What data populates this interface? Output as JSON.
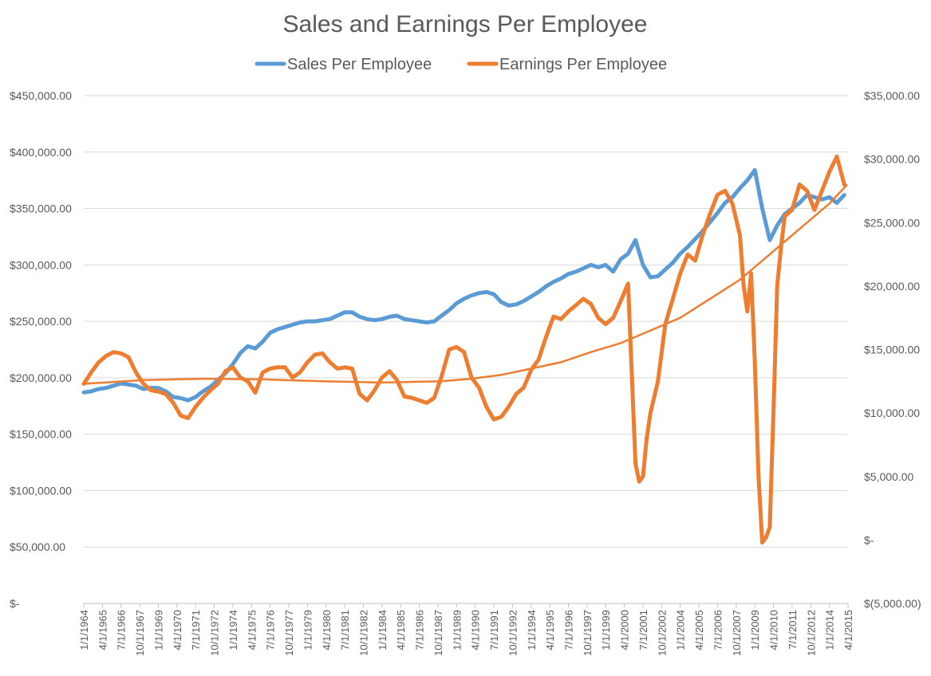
{
  "chart_data": {
    "type": "line",
    "title": "Sales and Earnings Per Employee",
    "legend_position": "top-center",
    "grid": true,
    "left_axis": {
      "ylim": [
        0,
        450000
      ],
      "ticks": [
        {
          "value": 450000,
          "label": "$450,000.00"
        },
        {
          "value": 400000,
          "label": "$400,000.00"
        },
        {
          "value": 350000,
          "label": "$350,000.00"
        },
        {
          "value": 300000,
          "label": "$300,000.00"
        },
        {
          "value": 250000,
          "label": "$250,000.00"
        },
        {
          "value": 200000,
          "label": "$200,000.00"
        },
        {
          "value": 150000,
          "label": "$150,000.00"
        },
        {
          "value": 100000,
          "label": "$100,000.00"
        },
        {
          "value": 50000,
          "label": "$50,000.00"
        },
        {
          "value": 0,
          "label": "$-"
        }
      ]
    },
    "right_axis": {
      "ylim": [
        -5000,
        35000
      ],
      "ticks": [
        {
          "value": 35000,
          "label": "$35,000.00"
        },
        {
          "value": 30000,
          "label": "$30,000.00"
        },
        {
          "value": 25000,
          "label": "$25,000.00"
        },
        {
          "value": 20000,
          "label": "$20,000.00"
        },
        {
          "value": 15000,
          "label": "$15,000.00"
        },
        {
          "value": 10000,
          "label": "$10,000.00"
        },
        {
          "value": 5000,
          "label": "$5,000.00"
        },
        {
          "value": 0,
          "label": "$-"
        },
        {
          "value": -5000,
          "label": "$(5,000.00)"
        }
      ]
    },
    "x_axis": {
      "range": [
        1964.0,
        2015.25
      ],
      "tick_labels": [
        "1/1/1964",
        "4/1/1965",
        "7/1/1966",
        "10/1/1967",
        "1/1/1969",
        "4/1/1970",
        "7/1/1971",
        "10/1/1972",
        "1/1/1974",
        "4/1/1975",
        "7/1/1976",
        "10/1/1977",
        "1/1/1979",
        "4/1/1980",
        "7/1/1981",
        "10/1/1982",
        "1/1/1984",
        "4/1/1985",
        "7/1/1986",
        "10/1/1987",
        "1/1/1989",
        "4/1/1990",
        "7/1/1991",
        "10/1/1992",
        "1/1/1994",
        "4/1/1995",
        "7/1/1996",
        "10/1/1997",
        "1/1/1999",
        "4/1/2000",
        "7/1/2001",
        "10/1/2002",
        "1/1/2004",
        "4/1/2005",
        "7/1/2006",
        "10/1/2007",
        "1/1/2009",
        "4/1/2010",
        "7/1/2011",
        "10/1/2012",
        "1/1/2014",
        "4/1/2015"
      ]
    },
    "series": [
      {
        "name": "Sales Per Employee",
        "axis": "left",
        "color": "#5b9bd5",
        "x": [
          1964.0,
          1964.5,
          1965.0,
          1965.5,
          1966.0,
          1966.5,
          1967.0,
          1967.5,
          1968.0,
          1968.5,
          1969.0,
          1969.5,
          1970.0,
          1970.5,
          1971.0,
          1971.5,
          1972.0,
          1972.5,
          1973.0,
          1973.5,
          1974.0,
          1974.5,
          1975.0,
          1975.5,
          1976.0,
          1976.5,
          1977.0,
          1977.5,
          1978.0,
          1978.5,
          1979.0,
          1979.5,
          1980.0,
          1980.5,
          1981.0,
          1981.5,
          1982.0,
          1982.5,
          1983.0,
          1983.5,
          1984.0,
          1984.5,
          1985.0,
          1985.5,
          1986.0,
          1986.5,
          1987.0,
          1987.5,
          1988.0,
          1988.5,
          1989.0,
          1989.5,
          1990.0,
          1990.5,
          1991.0,
          1991.5,
          1992.0,
          1992.5,
          1993.0,
          1993.5,
          1994.0,
          1994.5,
          1995.0,
          1995.5,
          1996.0,
          1996.5,
          1997.0,
          1997.5,
          1998.0,
          1998.5,
          1999.0,
          1999.5,
          2000.0,
          2000.5,
          2001.0,
          2001.5,
          2002.0,
          2002.5,
          2003.0,
          2003.5,
          2004.0,
          2004.5,
          2005.0,
          2005.5,
          2006.0,
          2006.5,
          2007.0,
          2007.5,
          2008.0,
          2008.5,
          2009.0,
          2009.5,
          2010.0,
          2010.5,
          2011.0,
          2011.5,
          2012.0,
          2012.5,
          2013.0,
          2013.5,
          2014.0,
          2014.5,
          2015.0
        ],
        "values": [
          187000,
          188000,
          190000,
          191000,
          193000,
          195000,
          194000,
          193000,
          190000,
          191000,
          191000,
          188000,
          183000,
          182000,
          180000,
          183000,
          188000,
          192000,
          198000,
          204000,
          212000,
          222000,
          228000,
          226000,
          232000,
          240000,
          243000,
          245000,
          247000,
          249000,
          250000,
          250000,
          251000,
          252000,
          255000,
          258000,
          258000,
          254000,
          252000,
          251000,
          252000,
          254000,
          255000,
          252000,
          251000,
          250000,
          249000,
          250000,
          255000,
          260000,
          266000,
          270000,
          273000,
          275000,
          276000,
          274000,
          267000,
          264000,
          265000,
          268000,
          272000,
          276000,
          281000,
          285000,
          288000,
          292000,
          294000,
          297000,
          300000,
          298000,
          300000,
          294000,
          305000,
          310000,
          322000,
          300000,
          289000,
          290000,
          296000,
          302000,
          310000,
          316000,
          323000,
          330000,
          338000,
          346000,
          355000,
          360000,
          368000,
          375000,
          384000,
          350000,
          322000,
          335000,
          345000,
          350000,
          355000,
          362000,
          360000,
          358000,
          360000,
          355000,
          362000
        ]
      },
      {
        "name": "Earnings Per Employee",
        "axis": "right",
        "color": "#ed7d31",
        "x": [
          1964.0,
          1964.5,
          1965.0,
          1965.5,
          1966.0,
          1966.5,
          1967.0,
          1967.5,
          1968.0,
          1968.5,
          1969.0,
          1969.5,
          1970.0,
          1970.5,
          1971.0,
          1971.5,
          1972.0,
          1972.5,
          1973.0,
          1973.5,
          1974.0,
          1974.5,
          1975.0,
          1975.5,
          1976.0,
          1976.5,
          1977.0,
          1977.5,
          1978.0,
          1978.5,
          1979.0,
          1979.5,
          1980.0,
          1980.5,
          1981.0,
          1981.5,
          1982.0,
          1982.5,
          1983.0,
          1983.5,
          1984.0,
          1984.5,
          1985.0,
          1985.5,
          1986.0,
          1986.5,
          1987.0,
          1987.5,
          1988.0,
          1988.5,
          1989.0,
          1989.5,
          1990.0,
          1990.5,
          1991.0,
          1991.5,
          1992.0,
          1992.5,
          1993.0,
          1993.5,
          1994.0,
          1994.5,
          1995.0,
          1995.5,
          1996.0,
          1996.5,
          1997.0,
          1997.5,
          1998.0,
          1998.5,
          1999.0,
          1999.5,
          2000.0,
          2000.5,
          2001.0,
          2001.25,
          2001.5,
          2001.75,
          2002.0,
          2002.5,
          2003.0,
          2003.5,
          2004.0,
          2004.5,
          2005.0,
          2005.5,
          2006.0,
          2006.5,
          2007.0,
          2007.5,
          2008.0,
          2008.25,
          2008.5,
          2008.75,
          2009.0,
          2009.25,
          2009.5,
          2009.75,
          2010.0,
          2010.25,
          2010.5,
          2010.75,
          2011.0,
          2011.5,
          2012.0,
          2012.5,
          2013.0,
          2013.5,
          2014.0,
          2014.5,
          2015.0
        ],
        "values": [
          12300,
          13200,
          14000,
          14500,
          14800,
          14700,
          14400,
          13200,
          12300,
          11800,
          11700,
          11500,
          10800,
          9800,
          9600,
          10500,
          11200,
          11800,
          12300,
          13300,
          13600,
          12800,
          12500,
          11600,
          13200,
          13500,
          13600,
          13600,
          12800,
          13200,
          14000,
          14600,
          14700,
          14000,
          13500,
          13600,
          13500,
          11500,
          11000,
          11800,
          12800,
          13300,
          12600,
          11300,
          11200,
          11000,
          10800,
          11200,
          12900,
          15000,
          15200,
          14800,
          12800,
          12000,
          10500,
          9500,
          9700,
          10500,
          11500,
          12000,
          13400,
          14200,
          16000,
          17600,
          17400,
          18000,
          18500,
          19000,
          18600,
          17500,
          17000,
          17500,
          18800,
          20200,
          6000,
          4600,
          5000,
          8000,
          10000,
          12500,
          17000,
          19000,
          21000,
          22500,
          22000,
          24000,
          25700,
          27200,
          27500,
          26500,
          24000,
          20000,
          18000,
          21000,
          14000,
          5000,
          -200,
          200,
          1000,
          10000,
          20000,
          23000,
          25500,
          26000,
          28000,
          27500,
          26000,
          27500,
          29000,
          30200,
          28000
        ]
      },
      {
        "name": "",
        "axis": "right",
        "color": "#ed7d31",
        "kind": "trendline",
        "x": [
          1964,
          1968,
          1972,
          1976,
          1980,
          1984,
          1988,
          1990,
          1992,
          1994,
          1996,
          1998,
          2000,
          2002,
          2004,
          2006,
          2008,
          2010,
          2012,
          2014,
          2015.2
        ],
        "values": [
          12300,
          12600,
          12700,
          12650,
          12500,
          12400,
          12500,
          12700,
          13000,
          13500,
          14000,
          14800,
          15500,
          16500,
          17500,
          19000,
          20500,
          22500,
          24500,
          26500,
          28000
        ]
      }
    ]
  }
}
